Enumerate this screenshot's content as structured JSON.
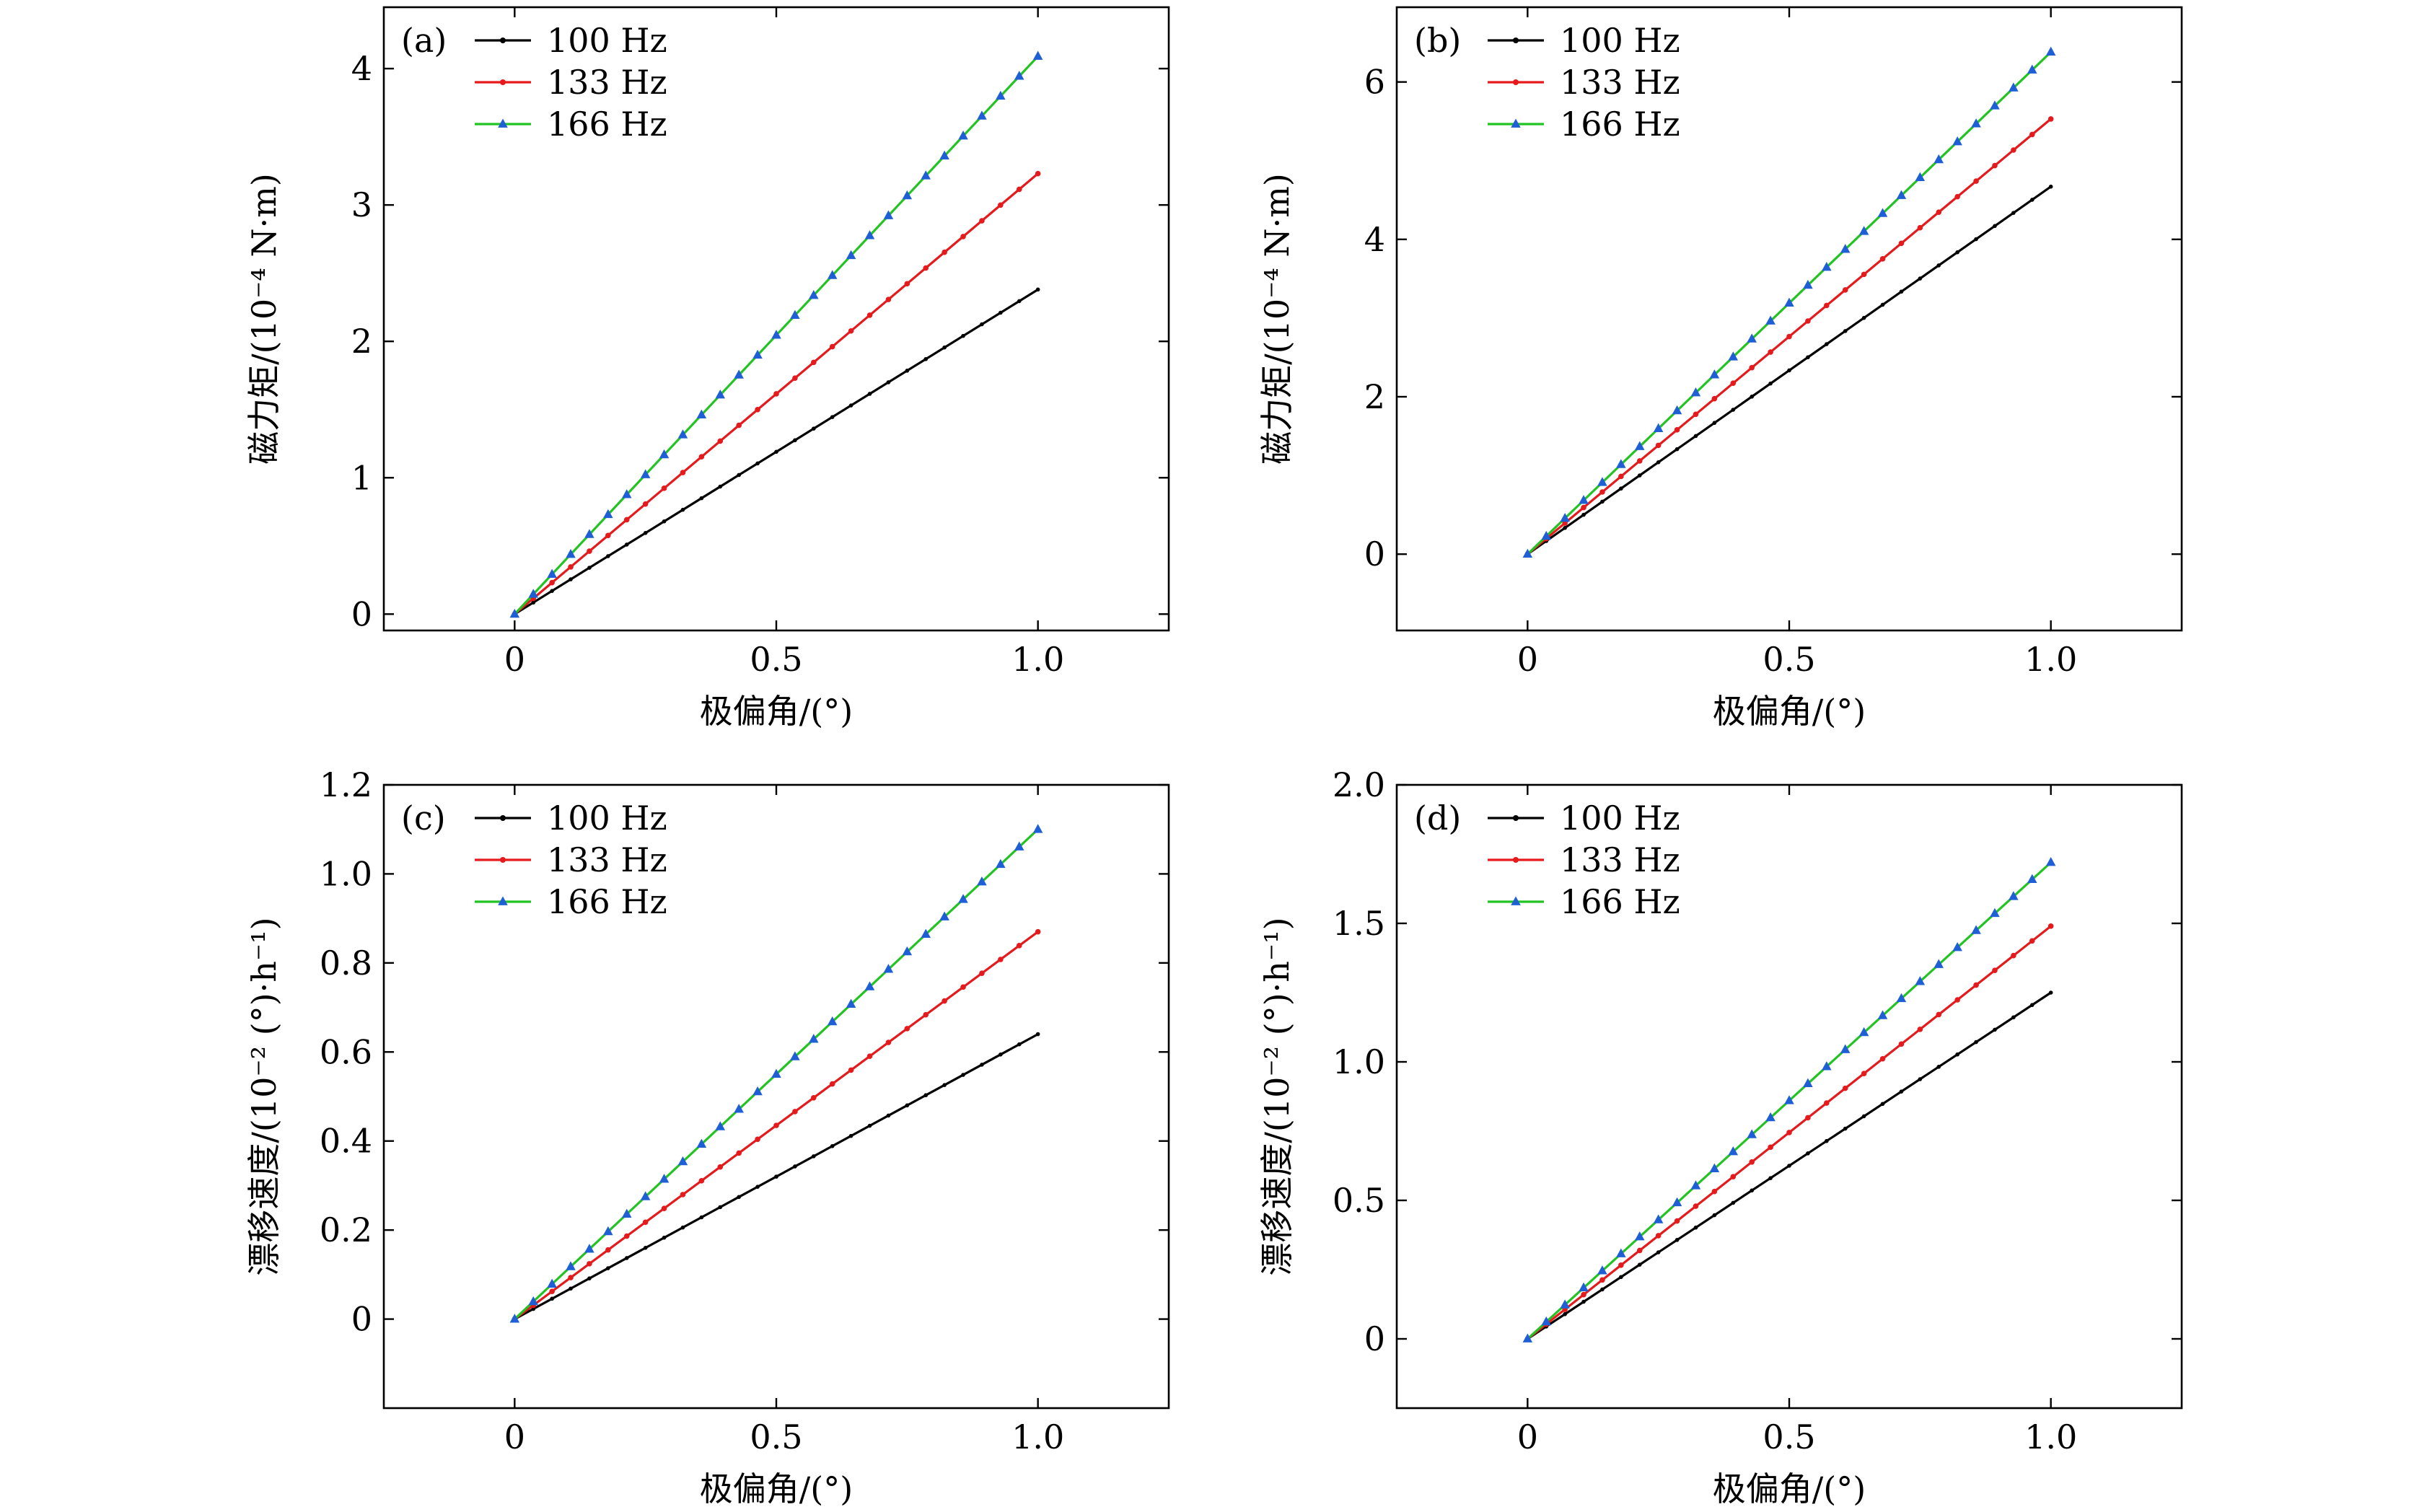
{
  "chart_data": [
    {
      "type": "line",
      "panel_label": "(a)",
      "xlabel": "极偏角/(°)",
      "ylabel": "磁力矩/(10⁻⁴ N·m)",
      "xlim": [
        -0.25,
        1.25
      ],
      "ylim": [
        -0.12,
        4.45
      ],
      "xticks": [
        0,
        0.5,
        1.0
      ],
      "xtick_labels": [
        "0",
        "0.5",
        "1.0"
      ],
      "yticks": [
        0,
        1,
        2,
        3,
        4
      ],
      "ytick_labels": [
        "0",
        "1",
        "2",
        "3",
        "4"
      ],
      "legend_position": "top-left",
      "series": [
        {
          "name": "100 Hz",
          "color": "#000000",
          "marker": "dot",
          "x": [
            0,
            1.0
          ],
          "values": [
            0,
            2.38
          ]
        },
        {
          "name": "133 Hz",
          "color": "#e41a1c",
          "marker": "dot",
          "x": [
            0,
            1.0
          ],
          "values": [
            0,
            3.23
          ]
        },
        {
          "name": "166 Hz",
          "color": "#22c322",
          "marker": "triangle",
          "marker_color": "#1f5fd6",
          "x": [
            0,
            1.0
          ],
          "values": [
            0,
            4.09
          ]
        }
      ]
    },
    {
      "type": "line",
      "panel_label": "(b)",
      "xlabel": "极偏角/(°)",
      "ylabel": "磁力矩/(10⁻⁴ N·m)",
      "xlim": [
        -0.25,
        1.25
      ],
      "ylim": [
        -0.97,
        6.95
      ],
      "xticks": [
        0,
        0.5,
        1.0
      ],
      "xtick_labels": [
        "0",
        "0.5",
        "1.0"
      ],
      "yticks": [
        0,
        2,
        4,
        6
      ],
      "ytick_labels": [
        "0",
        "2",
        "4",
        "6"
      ],
      "legend_position": "top-left",
      "series": [
        {
          "name": "100 Hz",
          "color": "#000000",
          "marker": "dot",
          "x": [
            0,
            1.0
          ],
          "values": [
            0,
            4.67
          ]
        },
        {
          "name": "133 Hz",
          "color": "#e41a1c",
          "marker": "dot",
          "x": [
            0,
            1.0
          ],
          "values": [
            0,
            5.53
          ]
        },
        {
          "name": "166 Hz",
          "color": "#22c322",
          "marker": "triangle",
          "marker_color": "#1f5fd6",
          "x": [
            0,
            1.0
          ],
          "values": [
            0,
            6.38
          ]
        }
      ]
    },
    {
      "type": "line",
      "panel_label": "(c)",
      "xlabel": "极偏角/(°)",
      "ylabel": "漂移速度/(10⁻² (°)·h⁻¹)",
      "xlim": [
        -0.25,
        1.25
      ],
      "ylim": [
        -0.2,
        1.2
      ],
      "xticks": [
        0,
        0.5,
        1.0
      ],
      "xtick_labels": [
        "0",
        "0.5",
        "1.0"
      ],
      "yticks": [
        0,
        0.2,
        0.4,
        0.6,
        0.8,
        1.0,
        1.2
      ],
      "ytick_labels": [
        "0",
        "0.2",
        "0.4",
        "0.6",
        "0.8",
        "1.0",
        "1.2"
      ],
      "legend_position": "top-left",
      "series": [
        {
          "name": "100 Hz",
          "color": "#000000",
          "marker": "dot",
          "x": [
            0,
            1.0
          ],
          "values": [
            0,
            0.64
          ]
        },
        {
          "name": "133 Hz",
          "color": "#e41a1c",
          "marker": "dot",
          "x": [
            0,
            1.0
          ],
          "values": [
            0,
            0.87
          ]
        },
        {
          "name": "166 Hz",
          "color": "#22c322",
          "marker": "triangle",
          "marker_color": "#1f5fd6",
          "x": [
            0,
            1.0
          ],
          "values": [
            0,
            1.1
          ]
        }
      ]
    },
    {
      "type": "line",
      "panel_label": "(d)",
      "xlabel": "极偏角/(°)",
      "ylabel": "漂移速度/(10⁻² (°)·h⁻¹)",
      "xlim": [
        -0.25,
        1.25
      ],
      "ylim": [
        -0.25,
        2.0
      ],
      "xticks": [
        0,
        0.5,
        1.0
      ],
      "xtick_labels": [
        "0",
        "0.5",
        "1.0"
      ],
      "yticks": [
        0,
        0.5,
        1.0,
        1.5,
        2.0
      ],
      "ytick_labels": [
        "0",
        "0.5",
        "1.0",
        "1.5",
        "2.0"
      ],
      "legend_position": "top-left",
      "series": [
        {
          "name": "100 Hz",
          "color": "#000000",
          "marker": "dot",
          "x": [
            0,
            1.0
          ],
          "values": [
            0,
            1.25
          ]
        },
        {
          "name": "133 Hz",
          "color": "#e41a1c",
          "marker": "dot",
          "x": [
            0,
            1.0
          ],
          "values": [
            0,
            1.49
          ]
        },
        {
          "name": "166 Hz",
          "color": "#22c322",
          "marker": "triangle",
          "marker_color": "#1f5fd6",
          "x": [
            0,
            1.0
          ],
          "values": [
            0,
            1.72
          ]
        }
      ]
    }
  ]
}
